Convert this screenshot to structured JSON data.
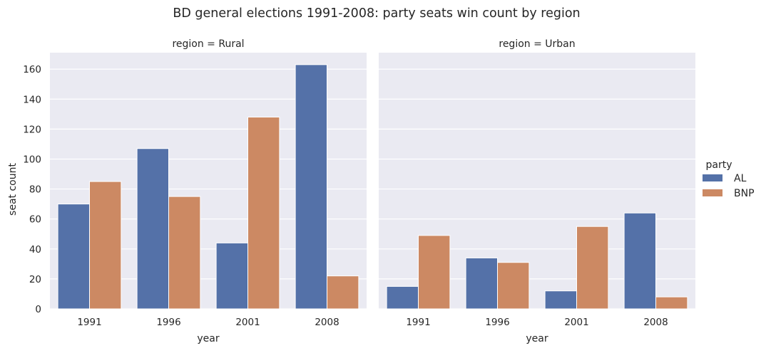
{
  "chart_data": {
    "type": "bar",
    "title": "BD general elections 1991-2008: party seats win count by region",
    "ylabel": "seat count",
    "xlabel": "year",
    "ylim": [
      0,
      171
    ],
    "yticks": [
      0,
      20,
      40,
      60,
      80,
      100,
      120,
      140,
      160
    ],
    "categories": [
      "1991",
      "1996",
      "2001",
      "2008"
    ],
    "legend": {
      "title": "party",
      "position": "right",
      "entries": [
        {
          "name": "AL",
          "color": "#5471a8"
        },
        {
          "name": "BNP",
          "color": "#cc8963"
        }
      ]
    },
    "panels": [
      {
        "title": "region = Rural",
        "series": [
          {
            "name": "AL",
            "values": [
              70,
              107,
              44,
              163
            ]
          },
          {
            "name": "BNP",
            "values": [
              85,
              75,
              128,
              22
            ]
          }
        ]
      },
      {
        "title": "region = Urban",
        "series": [
          {
            "name": "AL",
            "values": [
              15,
              34,
              12,
              64
            ]
          },
          {
            "name": "BNP",
            "values": [
              49,
              31,
              55,
              8
            ]
          }
        ]
      }
    ],
    "colors": {
      "background": "#eaeaf2",
      "grid": "#ffffff",
      "AL": "#5471a8",
      "BNP": "#cc8963"
    }
  }
}
